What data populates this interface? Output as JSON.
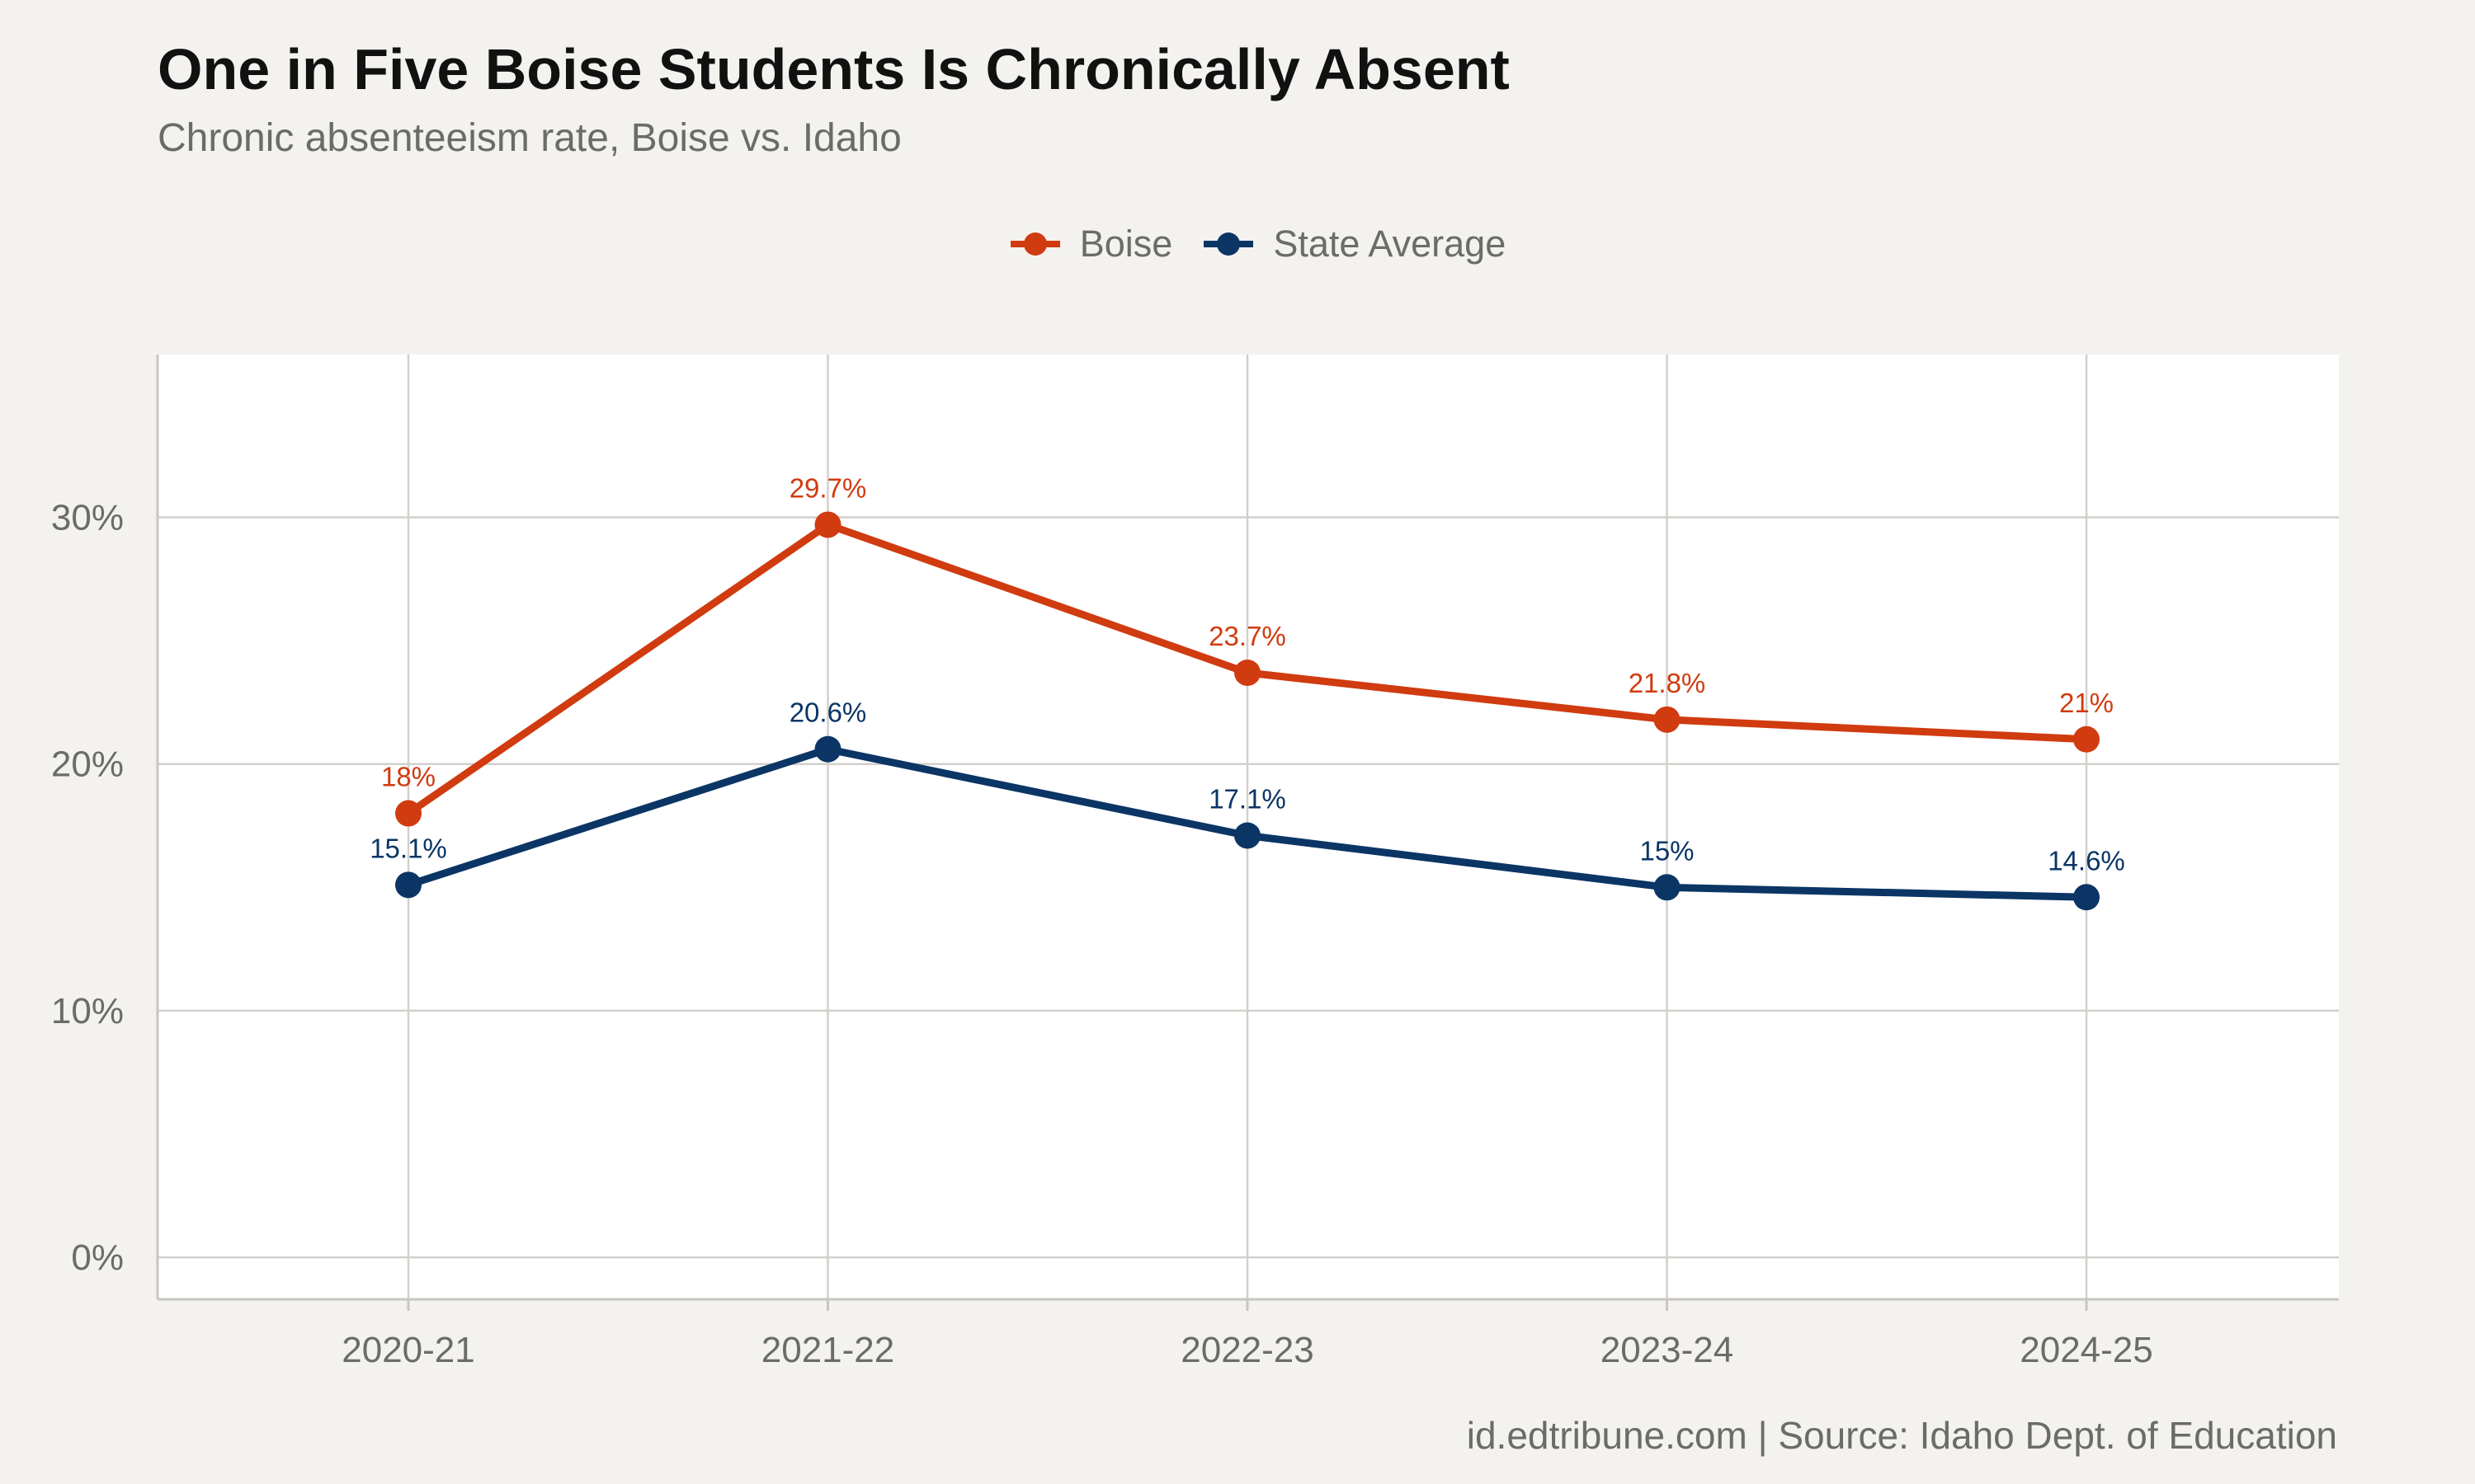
{
  "title": "One in Five Boise Students Is Chronically Absent",
  "subtitle": "Chronic absenteeism rate, Boise vs. Idaho",
  "caption": "id.edtribune.com | Source: Idaho Dept. of Education",
  "chart_data": {
    "type": "line",
    "title": "One in Five Boise Students Is Chronically Absent",
    "subtitle": "Chronic absenteeism rate, Boise vs. Idaho",
    "xlabel": "",
    "ylabel": "",
    "categories": [
      "2020-21",
      "2021-22",
      "2022-23",
      "2023-24",
      "2024-25"
    ],
    "series": [
      {
        "name": "Boise",
        "color": "#d03b10",
        "values": [
          18,
          29.7,
          23.7,
          21.8,
          21
        ],
        "labels": [
          "18%",
          "29.7%",
          "23.7%",
          "21.8%",
          "21%"
        ]
      },
      {
        "name": "State Average",
        "color": "#0b3565",
        "values": [
          15.1,
          20.6,
          17.1,
          15,
          14.6
        ],
        "labels": [
          "15.1%",
          "20.6%",
          "17.1%",
          "15%",
          "14.6%"
        ]
      }
    ],
    "y_ticks": [
      0,
      10,
      20,
      30
    ],
    "y_tick_labels": [
      "0%",
      "10%",
      "20%",
      "30%"
    ],
    "ylim": [
      -1.7,
      36.6
    ],
    "grid": true,
    "legend_position": "top-center",
    "panel_background": "#ffffff",
    "page_background": "#f4f2ee"
  }
}
